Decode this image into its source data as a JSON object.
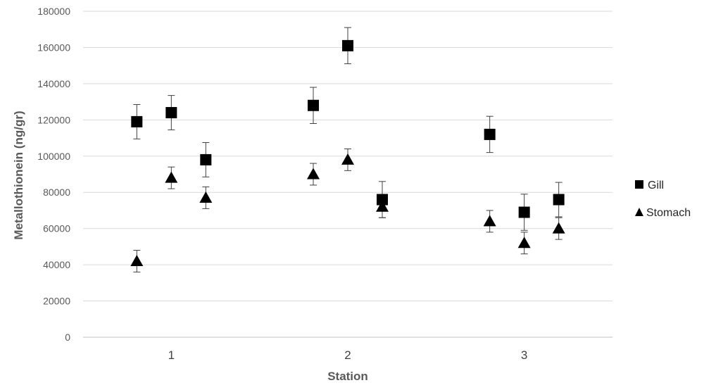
{
  "chart_data": {
    "type": "scatter",
    "title": "",
    "xlabel": "Station",
    "ylabel": "Metallothionein (ng/gr)",
    "categories": [
      "1",
      "2",
      "3"
    ],
    "points_per_category": 3,
    "ylim": [
      0,
      180000
    ],
    "yticks": [
      "0",
      "20000",
      "40000",
      "60000",
      "80000",
      "100000",
      "120000",
      "140000",
      "160000",
      "180000"
    ],
    "grid": true,
    "legend_position": "right",
    "series": [
      {
        "name": "Gill",
        "marker": "square",
        "color": "#000000",
        "values": [
          119000,
          124000,
          98000,
          128000,
          161000,
          76000,
          112000,
          69000,
          76000
        ],
        "errors": [
          9500,
          9500,
          9500,
          10000,
          10000,
          10000,
          10000,
          10000,
          9500
        ]
      },
      {
        "name": "Stomach",
        "marker": "triangle",
        "color": "#000000",
        "values": [
          42000,
          88000,
          77000,
          90000,
          98000,
          72000,
          64000,
          52000,
          60000
        ],
        "errors": [
          6000,
          6000,
          6000,
          6000,
          6000,
          6000,
          6000,
          6000,
          6000
        ]
      }
    ]
  }
}
